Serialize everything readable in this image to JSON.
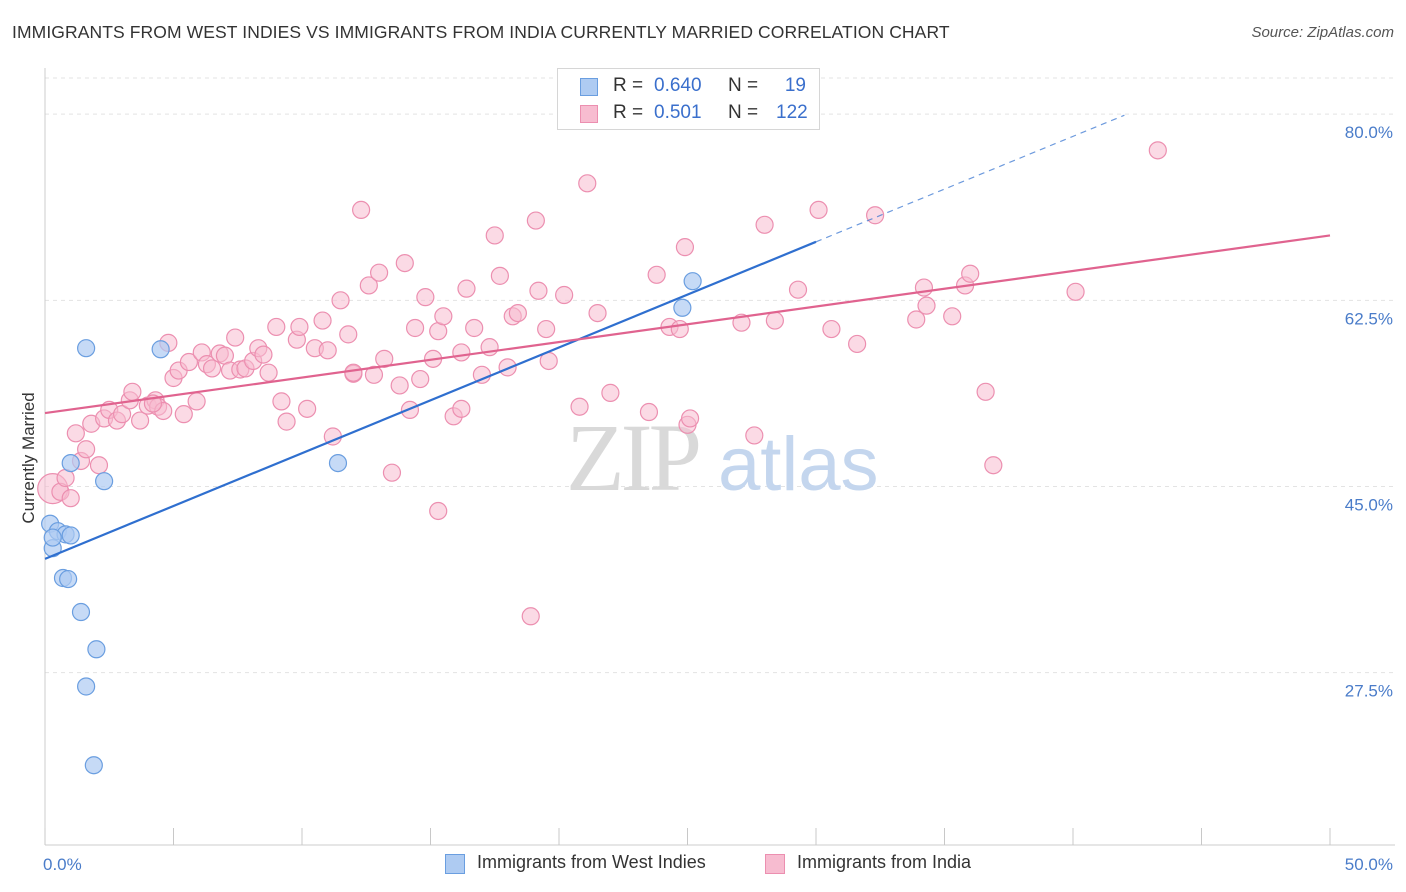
{
  "title": "IMMIGRANTS FROM WEST INDIES VS IMMIGRANTS FROM INDIA CURRENTLY MARRIED CORRELATION CHART",
  "source": "Source: ZipAtlas.com",
  "watermark": {
    "zip": "ZIP",
    "atlas": "atlas"
  },
  "colors": {
    "blue_fill": "#aecbf2",
    "blue_stroke": "#6a9ee0",
    "blue_line": "#2f6fcf",
    "pink_fill": "#f7bcd0",
    "pink_stroke": "#ec8fb0",
    "pink_line": "#e0638f",
    "tick_text": "#4a7cc9",
    "grid": "#e3e3e3"
  },
  "legend": {
    "rows": [
      {
        "r_label": "R =",
        "r_value": "0.640",
        "n_label": "N =",
        "n_value": "19"
      },
      {
        "r_label": "R =",
        "r_value": "0.501",
        "n_label": "N =",
        "n_value": "122"
      }
    ]
  },
  "bottom_legend": {
    "blue": "Immigrants from West Indies",
    "pink": "Immigrants from India"
  },
  "chart_data": {
    "type": "scatter",
    "title": "IMMIGRANTS FROM WEST INDIES VS IMMIGRANTS FROM INDIA CURRENTLY MARRIED CORRELATION CHART",
    "xlabel": "",
    "ylabel": "Currently Married",
    "xlim": [
      0,
      50
    ],
    "ylim": [
      11.3,
      83.4
    ],
    "x_tick_labels": [
      {
        "value": 0,
        "label": "0.0%"
      },
      {
        "value": 50,
        "label": "50.0%"
      }
    ],
    "y_ticks": [
      {
        "value": 27.5,
        "label": "27.5%"
      },
      {
        "value": 45.0,
        "label": "45.0%"
      },
      {
        "value": 62.5,
        "label": "62.5%"
      },
      {
        "value": 80.0,
        "label": "80.0%"
      }
    ],
    "grid": "horizontal dashed",
    "legend_position": "top-center",
    "series": [
      {
        "name": "Immigrants from West Indies",
        "color": "blue",
        "trend": {
          "x0": 0.0,
          "y0": 38.2,
          "x1": 30.0,
          "y1": 68.0,
          "dashed_to_x": 42.0,
          "dashed_to_y": 79.9
        },
        "points": [
          {
            "x": 0.2,
            "y": 41.5
          },
          {
            "x": 0.3,
            "y": 39.2
          },
          {
            "x": 0.5,
            "y": 40.8
          },
          {
            "x": 0.8,
            "y": 40.5
          },
          {
            "x": 1.0,
            "y": 40.4
          },
          {
            "x": 1.0,
            "y": 47.2
          },
          {
            "x": 0.7,
            "y": 36.4
          },
          {
            "x": 0.9,
            "y": 36.3
          },
          {
            "x": 1.4,
            "y": 33.2
          },
          {
            "x": 1.6,
            "y": 58.0
          },
          {
            "x": 2.3,
            "y": 45.5
          },
          {
            "x": 2.0,
            "y": 29.7
          },
          {
            "x": 1.6,
            "y": 26.2
          },
          {
            "x": 1.9,
            "y": 18.8
          },
          {
            "x": 4.5,
            "y": 57.9
          },
          {
            "x": 11.4,
            "y": 47.2
          },
          {
            "x": 25.2,
            "y": 64.3
          },
          {
            "x": 24.8,
            "y": 61.8
          },
          {
            "x": 0.3,
            "y": 40.2
          }
        ]
      },
      {
        "name": "Immigrants from India",
        "color": "pink",
        "trend": {
          "x0": 0.0,
          "y0": 51.9,
          "x1": 50.0,
          "y1": 68.6
        },
        "points": [
          {
            "x": 0.3,
            "y": 44.8,
            "big": true
          },
          {
            "x": 0.6,
            "y": 44.5
          },
          {
            "x": 0.8,
            "y": 45.8
          },
          {
            "x": 1.0,
            "y": 43.9
          },
          {
            "x": 1.2,
            "y": 50.0
          },
          {
            "x": 1.4,
            "y": 47.4
          },
          {
            "x": 1.6,
            "y": 48.5
          },
          {
            "x": 1.8,
            "y": 50.9
          },
          {
            "x": 2.1,
            "y": 47.0
          },
          {
            "x": 2.3,
            "y": 51.4
          },
          {
            "x": 2.5,
            "y": 52.2
          },
          {
            "x": 2.8,
            "y": 51.2
          },
          {
            "x": 3.0,
            "y": 51.8
          },
          {
            "x": 3.3,
            "y": 53.1
          },
          {
            "x": 3.4,
            "y": 53.9
          },
          {
            "x": 3.7,
            "y": 51.2
          },
          {
            "x": 4.0,
            "y": 52.6
          },
          {
            "x": 4.3,
            "y": 53.1
          },
          {
            "x": 4.4,
            "y": 52.5
          },
          {
            "x": 4.6,
            "y": 52.1
          },
          {
            "x": 4.8,
            "y": 58.5
          },
          {
            "x": 5.0,
            "y": 55.2
          },
          {
            "x": 5.2,
            "y": 55.9
          },
          {
            "x": 5.4,
            "y": 51.8
          },
          {
            "x": 5.6,
            "y": 56.7
          },
          {
            "x": 5.9,
            "y": 53.0
          },
          {
            "x": 6.1,
            "y": 57.6
          },
          {
            "x": 6.3,
            "y": 56.5
          },
          {
            "x": 6.5,
            "y": 56.1
          },
          {
            "x": 6.8,
            "y": 57.5
          },
          {
            "x": 7.0,
            "y": 57.3
          },
          {
            "x": 7.2,
            "y": 55.9
          },
          {
            "x": 7.4,
            "y": 59.0
          },
          {
            "x": 7.6,
            "y": 56.0
          },
          {
            "x": 7.8,
            "y": 56.1
          },
          {
            "x": 8.1,
            "y": 56.8
          },
          {
            "x": 8.3,
            "y": 58.0
          },
          {
            "x": 8.5,
            "y": 57.4
          },
          {
            "x": 8.7,
            "y": 55.7
          },
          {
            "x": 9.0,
            "y": 60.0
          },
          {
            "x": 9.2,
            "y": 53.0
          },
          {
            "x": 9.4,
            "y": 51.1
          },
          {
            "x": 9.8,
            "y": 58.8
          },
          {
            "x": 9.9,
            "y": 60.0
          },
          {
            "x": 10.2,
            "y": 52.3
          },
          {
            "x": 10.5,
            "y": 58.0
          },
          {
            "x": 10.8,
            "y": 60.6
          },
          {
            "x": 11.0,
            "y": 57.8
          },
          {
            "x": 11.2,
            "y": 49.7
          },
          {
            "x": 11.5,
            "y": 62.5
          },
          {
            "x": 11.8,
            "y": 59.3
          },
          {
            "x": 12.0,
            "y": 55.6
          },
          {
            "x": 12.3,
            "y": 71.0
          },
          {
            "x": 12.6,
            "y": 63.9
          },
          {
            "x": 12.8,
            "y": 55.5
          },
          {
            "x": 13.0,
            "y": 65.1
          },
          {
            "x": 13.2,
            "y": 57.0
          },
          {
            "x": 13.5,
            "y": 46.3
          },
          {
            "x": 13.8,
            "y": 54.5
          },
          {
            "x": 14.2,
            "y": 52.2
          },
          {
            "x": 14.0,
            "y": 66.0
          },
          {
            "x": 14.4,
            "y": 59.9
          },
          {
            "x": 14.6,
            "y": 55.1
          },
          {
            "x": 14.8,
            "y": 62.8
          },
          {
            "x": 15.1,
            "y": 57.0
          },
          {
            "x": 15.3,
            "y": 59.6
          },
          {
            "x": 15.5,
            "y": 61.0
          },
          {
            "x": 15.3,
            "y": 42.7
          },
          {
            "x": 15.9,
            "y": 51.6
          },
          {
            "x": 16.2,
            "y": 52.3
          },
          {
            "x": 16.4,
            "y": 63.6
          },
          {
            "x": 16.2,
            "y": 57.6
          },
          {
            "x": 16.7,
            "y": 59.9
          },
          {
            "x": 17.0,
            "y": 55.5
          },
          {
            "x": 17.3,
            "y": 58.1
          },
          {
            "x": 17.5,
            "y": 68.6
          },
          {
            "x": 17.7,
            "y": 64.8
          },
          {
            "x": 18.0,
            "y": 56.2
          },
          {
            "x": 18.2,
            "y": 61.0
          },
          {
            "x": 18.4,
            "y": 61.3
          },
          {
            "x": 18.9,
            "y": 32.8
          },
          {
            "x": 19.2,
            "y": 63.4
          },
          {
            "x": 19.1,
            "y": 70.0
          },
          {
            "x": 19.6,
            "y": 56.8
          },
          {
            "x": 19.5,
            "y": 59.8
          },
          {
            "x": 20.2,
            "y": 63.0
          },
          {
            "x": 20.8,
            "y": 52.5
          },
          {
            "x": 21.5,
            "y": 61.3
          },
          {
            "x": 21.1,
            "y": 73.5
          },
          {
            "x": 22.0,
            "y": 53.8
          },
          {
            "x": 23.5,
            "y": 52.0
          },
          {
            "x": 23.8,
            "y": 64.9
          },
          {
            "x": 24.3,
            "y": 60.0
          },
          {
            "x": 24.7,
            "y": 59.8
          },
          {
            "x": 24.9,
            "y": 67.5
          },
          {
            "x": 25.0,
            "y": 50.8
          },
          {
            "x": 25.1,
            "y": 51.4
          },
          {
            "x": 27.1,
            "y": 60.4
          },
          {
            "x": 27.6,
            "y": 49.8
          },
          {
            "x": 28.0,
            "y": 69.6
          },
          {
            "x": 28.4,
            "y": 60.6
          },
          {
            "x": 29.3,
            "y": 63.5
          },
          {
            "x": 30.1,
            "y": 71.0
          },
          {
            "x": 30.6,
            "y": 59.8
          },
          {
            "x": 31.6,
            "y": 58.4
          },
          {
            "x": 32.3,
            "y": 70.5
          },
          {
            "x": 33.9,
            "y": 60.7
          },
          {
            "x": 34.2,
            "y": 63.7
          },
          {
            "x": 34.3,
            "y": 62.0
          },
          {
            "x": 35.3,
            "y": 61.0
          },
          {
            "x": 35.8,
            "y": 63.9
          },
          {
            "x": 36.0,
            "y": 65.0
          },
          {
            "x": 36.6,
            "y": 53.9
          },
          {
            "x": 36.9,
            "y": 47.0
          },
          {
            "x": 40.1,
            "y": 63.3
          },
          {
            "x": 43.3,
            "y": 76.6
          },
          {
            "x": 12.0,
            "y": 55.7
          },
          {
            "x": 4.2,
            "y": 52.8
          }
        ]
      }
    ]
  }
}
